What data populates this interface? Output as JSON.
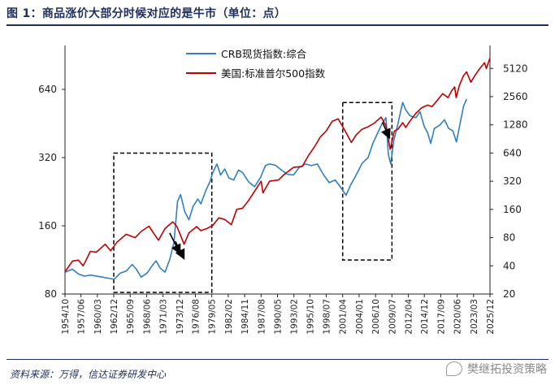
{
  "title": "图 1：商品涨价大部分时候对应的是牛市（单位：点）",
  "source": "资料来源：万得，信达证券研发中心",
  "watermark": "樊继拓投资策略",
  "colors": {
    "crb": "#2f7fc1",
    "us": "#c00000",
    "box": "#000000",
    "axis": "#222222"
  },
  "chart_data": {
    "type": "line",
    "x_tick_labels": [
      "1954/10",
      "1957/06",
      "1960/03",
      "1962/12",
      "1965/09",
      "1968/06",
      "1971/03",
      "1973/12",
      "1976/08",
      "1979/05",
      "1982/02",
      "1984/11",
      "1987/08",
      "1990/05",
      "1993/02",
      "1995/10",
      "1998/07",
      "2001/04",
      "2004/01",
      "2006/10",
      "2009/07",
      "2012/04",
      "2014/12",
      "2017/09",
      "2020/06",
      "2023/03",
      "2025/12"
    ],
    "x_range": [
      "1954/10",
      "2025/12"
    ],
    "left_axis": {
      "scale": "log2",
      "ticks": [
        80,
        160,
        320,
        640
      ],
      "range": [
        80,
        1000
      ]
    },
    "right_axis": {
      "scale": "log2",
      "ticks": [
        20,
        40,
        80,
        160,
        320,
        640,
        1280,
        2560,
        5120
      ],
      "range": [
        20,
        9000
      ]
    },
    "legend_position": "top-center",
    "series": [
      {
        "name": "CRB现货指数:综合",
        "axis": "left",
        "color": "#2f7fc1",
        "points": [
          [
            1954.8,
            100
          ],
          [
            1956.0,
            103
          ],
          [
            1957.0,
            98
          ],
          [
            1958.0,
            96
          ],
          [
            1959.0,
            97
          ],
          [
            1960.0,
            96
          ],
          [
            1961.0,
            95
          ],
          [
            1962.0,
            94
          ],
          [
            1963.0,
            93
          ],
          [
            1964.0,
            99
          ],
          [
            1965.0,
            101
          ],
          [
            1966.0,
            108
          ],
          [
            1966.7,
            103
          ],
          [
            1967.5,
            95
          ],
          [
            1968.5,
            99
          ],
          [
            1969.5,
            108
          ],
          [
            1970.0,
            112
          ],
          [
            1970.7,
            104
          ],
          [
            1971.5,
            100
          ],
          [
            1972.3,
            114
          ],
          [
            1973.0,
            135
          ],
          [
            1973.6,
            205
          ],
          [
            1974.1,
            220
          ],
          [
            1974.8,
            185
          ],
          [
            1975.5,
            170
          ],
          [
            1976.2,
            195
          ],
          [
            1977.0,
            210
          ],
          [
            1977.5,
            200
          ],
          [
            1978.3,
            228
          ],
          [
            1979.0,
            250
          ],
          [
            1979.5,
            275
          ],
          [
            1980.2,
            300
          ],
          [
            1980.8,
            268
          ],
          [
            1981.5,
            285
          ],
          [
            1982.2,
            260
          ],
          [
            1983.0,
            255
          ],
          [
            1983.8,
            282
          ],
          [
            1984.5,
            275
          ],
          [
            1985.5,
            250
          ],
          [
            1986.5,
            238
          ],
          [
            1987.5,
            262
          ],
          [
            1988.3,
            295
          ],
          [
            1989.0,
            300
          ],
          [
            1990.0,
            296
          ],
          [
            1991.0,
            282
          ],
          [
            1992.0,
            270
          ],
          [
            1993.0,
            268
          ],
          [
            1994.0,
            290
          ],
          [
            1995.0,
            300
          ],
          [
            1996.0,
            295
          ],
          [
            1997.0,
            300
          ],
          [
            1998.0,
            270
          ],
          [
            1999.0,
            248
          ],
          [
            2000.0,
            255
          ],
          [
            2001.0,
            235
          ],
          [
            2001.8,
            218
          ],
          [
            2002.5,
            240
          ],
          [
            2003.5,
            268
          ],
          [
            2004.5,
            302
          ],
          [
            2005.5,
            320
          ],
          [
            2006.3,
            370
          ],
          [
            2007.0,
            405
          ],
          [
            2007.8,
            450
          ],
          [
            2008.5,
            480
          ],
          [
            2008.9,
            330
          ],
          [
            2009.3,
            300
          ],
          [
            2009.8,
            380
          ],
          [
            2010.5,
            450
          ],
          [
            2011.0,
            520
          ],
          [
            2011.3,
            560
          ],
          [
            2011.8,
            520
          ],
          [
            2012.5,
            490
          ],
          [
            2013.5,
            480
          ],
          [
            2014.2,
            510
          ],
          [
            2014.9,
            440
          ],
          [
            2015.5,
            410
          ],
          [
            2016.0,
            370
          ],
          [
            2016.6,
            430
          ],
          [
            2017.5,
            445
          ],
          [
            2018.3,
            470
          ],
          [
            2019.0,
            430
          ],
          [
            2019.7,
            420
          ],
          [
            2020.3,
            375
          ],
          [
            2020.9,
            450
          ],
          [
            2021.5,
            540
          ],
          [
            2022.0,
            580
          ]
        ]
      },
      {
        "name": "美国:标准普尔500指数",
        "axis": "right",
        "color": "#c00000",
        "points": [
          [
            1954.8,
            35
          ],
          [
            1956.0,
            45
          ],
          [
            1957.0,
            46
          ],
          [
            1957.8,
            40
          ],
          [
            1959.0,
            57
          ],
          [
            1960.0,
            56
          ],
          [
            1961.5,
            68
          ],
          [
            1962.4,
            58
          ],
          [
            1963.5,
            72
          ],
          [
            1965.0,
            87
          ],
          [
            1966.5,
            80
          ],
          [
            1967.5,
            93
          ],
          [
            1968.8,
            106
          ],
          [
            1970.4,
            75
          ],
          [
            1971.5,
            100
          ],
          [
            1972.8,
            118
          ],
          [
            1973.5,
            105
          ],
          [
            1974.7,
            68
          ],
          [
            1975.5,
            90
          ],
          [
            1976.8,
            105
          ],
          [
            1977.5,
            95
          ],
          [
            1978.5,
            100
          ],
          [
            1979.5,
            108
          ],
          [
            1980.5,
            130
          ],
          [
            1981.5,
            125
          ],
          [
            1982.6,
            110
          ],
          [
            1983.5,
            160
          ],
          [
            1984.5,
            165
          ],
          [
            1985.5,
            200
          ],
          [
            1987.6,
            320
          ],
          [
            1987.9,
            240
          ],
          [
            1989.0,
            320
          ],
          [
            1990.5,
            330
          ],
          [
            1991.5,
            380
          ],
          [
            1993.0,
            450
          ],
          [
            1994.5,
            460
          ],
          [
            1995.5,
            600
          ],
          [
            1996.5,
            740
          ],
          [
            1997.5,
            950
          ],
          [
            1998.5,
            1100
          ],
          [
            1999.5,
            1400
          ],
          [
            2000.5,
            1480
          ],
          [
            2001.5,
            1150
          ],
          [
            2002.7,
            830
          ],
          [
            2003.5,
            1000
          ],
          [
            2004.5,
            1150
          ],
          [
            2005.5,
            1220
          ],
          [
            2006.5,
            1330
          ],
          [
            2007.7,
            1550
          ],
          [
            2008.5,
            1250
          ],
          [
            2009.2,
            700
          ],
          [
            2009.9,
            1100
          ],
          [
            2010.5,
            1150
          ],
          [
            2011.3,
            1350
          ],
          [
            2011.8,
            1200
          ],
          [
            2012.5,
            1400
          ],
          [
            2013.5,
            1700
          ],
          [
            2014.5,
            1950
          ],
          [
            2015.5,
            2080
          ],
          [
            2016.2,
            2000
          ],
          [
            2017.0,
            2300
          ],
          [
            2018.0,
            2750
          ],
          [
            2018.9,
            2500
          ],
          [
            2019.5,
            2950
          ],
          [
            2020.0,
            3250
          ],
          [
            2020.25,
            2500
          ],
          [
            2020.8,
            3400
          ],
          [
            2021.5,
            4300
          ],
          [
            2022.0,
            4700
          ],
          [
            2022.7,
            3650
          ],
          [
            2023.5,
            4400
          ],
          [
            2024.3,
            5200
          ],
          [
            2025.0,
            5900
          ],
          [
            2025.3,
            5100
          ],
          [
            2025.9,
            6600
          ]
        ]
      }
    ],
    "annotations": [
      {
        "type": "dashed-box",
        "x_range": [
          "1962/12",
          "1979/05"
        ]
      },
      {
        "type": "dashed-box",
        "x_range": [
          "2001/04",
          "2009/07"
        ]
      },
      {
        "type": "arrow",
        "at": "1973/12"
      },
      {
        "type": "arrow",
        "at": "1974/08"
      },
      {
        "type": "arrow",
        "at": "2009/01"
      }
    ]
  }
}
